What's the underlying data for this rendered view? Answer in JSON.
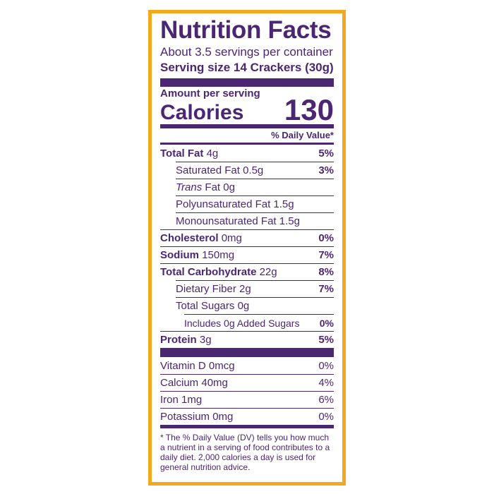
{
  "header": {
    "title": "Nutrition Facts",
    "servings": "About 3.5 servings per container",
    "serving_size": "Serving size 14 Crackers (30g)"
  },
  "calories": {
    "amount_per_serving": "Amount per serving",
    "label": "Calories",
    "value": "130"
  },
  "daily_value_header": "% Daily Value*",
  "nutrients": [
    {
      "name": "Total Fat",
      "amount": "4g",
      "dv": "5%"
    },
    {
      "name": "Saturated Fat",
      "amount": "0.5g",
      "dv": "3%"
    },
    {
      "name_italic": "Trans",
      "name": "Fat",
      "amount": "0g"
    },
    {
      "name": "Polyunsaturated Fat",
      "amount": "1.5g"
    },
    {
      "name": "Monounsaturated Fat",
      "amount": "1.5g"
    },
    {
      "name": "Cholesterol",
      "amount": "0mg",
      "dv": "0%"
    },
    {
      "name": "Sodium",
      "amount": "150mg",
      "dv": "7%"
    },
    {
      "name": "Total Carbohydrate",
      "amount": "22g",
      "dv": "8%"
    },
    {
      "name": "Dietary Fiber",
      "amount": "2g",
      "dv": "7%"
    },
    {
      "name": "Total Sugars",
      "amount": "0g"
    },
    {
      "name": "Includes 0g Added Sugars",
      "dv": "0%"
    },
    {
      "name": "Protein",
      "amount": "3g",
      "dv": "5%"
    }
  ],
  "vitamins": [
    {
      "name": "Vitamin D",
      "amount": "0mcg",
      "dv": "0%"
    },
    {
      "name": "Calcium",
      "amount": "40mg",
      "dv": "4%"
    },
    {
      "name": "Iron",
      "amount": "1mg",
      "dv": "6%"
    },
    {
      "name": "Potassium",
      "amount": "0mg",
      "dv": "0%"
    }
  ],
  "footnote": "* The % Daily Value (DV) tells you how much a nutrient in a serving of food contributes to a daily diet. 2,000 calories a day is used for general nutrition advice."
}
